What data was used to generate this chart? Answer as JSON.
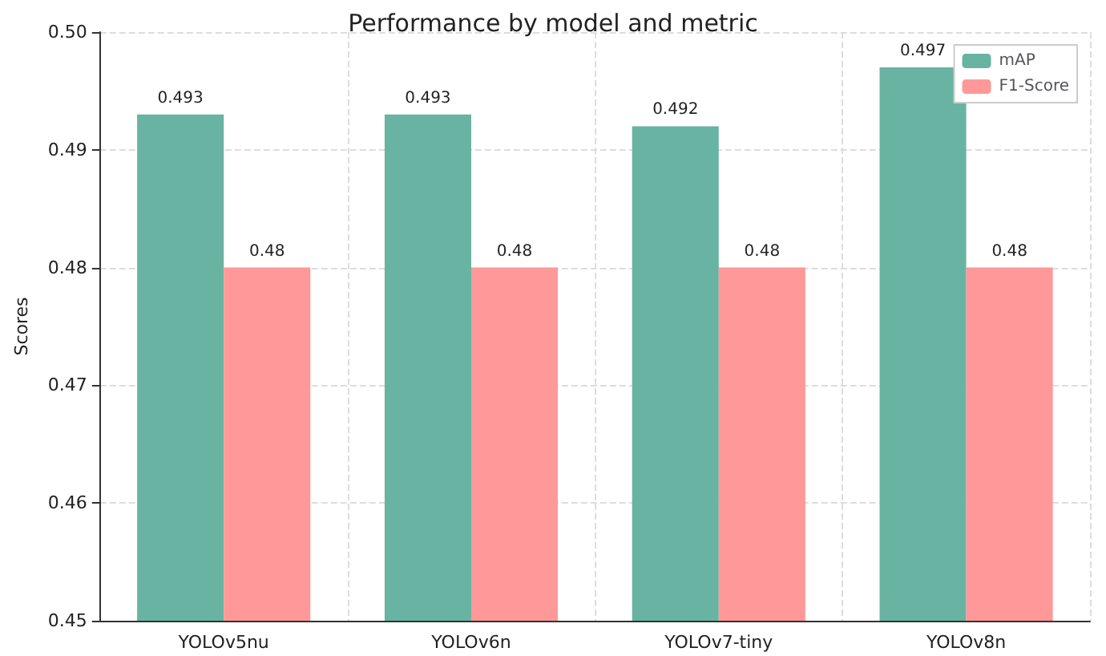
{
  "chart_data": {
    "type": "bar",
    "title": "Performance by model and metric",
    "ylabel": "Scores",
    "categories": [
      "YOLOv5nu",
      "YOLOv6n",
      "YOLOv7-tiny",
      "YOLOv8n"
    ],
    "series": [
      {
        "name": "mAP",
        "color": "#69b3a2",
        "values": [
          0.493,
          0.493,
          0.492,
          0.497
        ]
      },
      {
        "name": "F1-Score",
        "color": "#ff9999",
        "values": [
          0.48,
          0.48,
          0.48,
          0.48
        ]
      }
    ],
    "ylim": [
      0.45,
      0.5
    ],
    "yticks": [
      0.45,
      0.46,
      0.47,
      0.48,
      0.49,
      {
        "value": 0.5,
        "label": "0.50"
      }
    ],
    "data_labels": true,
    "grid": true,
    "legend": "top right"
  }
}
